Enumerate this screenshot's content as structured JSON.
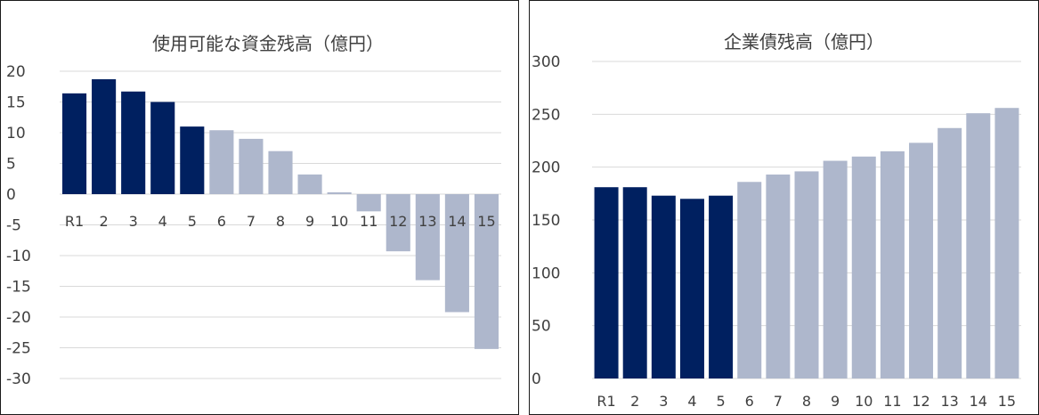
{
  "chart_data": [
    {
      "type": "bar",
      "title": "使用可能な資金残高（億円）",
      "xlabel": "",
      "ylabel": "",
      "categories": [
        "R1",
        "2",
        "3",
        "4",
        "5",
        "6",
        "7",
        "8",
        "9",
        "10",
        "11",
        "12",
        "13",
        "14",
        "15"
      ],
      "values": [
        16.4,
        18.7,
        16.7,
        15.0,
        11.0,
        10.4,
        9.0,
        7.0,
        3.2,
        0.3,
        -2.8,
        -9.3,
        -14.0,
        -19.2,
        -25.2
      ],
      "ylim": [
        -30,
        20
      ],
      "yticks": [
        "20",
        "15",
        "10",
        "5",
        "0",
        "-5",
        "-10",
        "-15",
        "-20",
        "-25",
        "-30"
      ],
      "grid": true,
      "legend": "none",
      "colors": {
        "actual": "#002060",
        "forecast": "#aeb7cc"
      },
      "actual_count": 5
    },
    {
      "type": "bar",
      "title": "企業債残高（億円）",
      "xlabel": "",
      "ylabel": "",
      "categories": [
        "R1",
        "2",
        "3",
        "4",
        "5",
        "6",
        "7",
        "8",
        "9",
        "10",
        "11",
        "12",
        "13",
        "14",
        "15"
      ],
      "values": [
        181,
        181,
        173,
        170,
        173,
        186,
        193,
        196,
        206,
        210,
        215,
        223,
        237,
        251,
        256
      ],
      "ylim": [
        0,
        300
      ],
      "yticks": [
        "300",
        "250",
        "200",
        "150",
        "100",
        "50",
        "0"
      ],
      "grid": true,
      "legend": "none",
      "colors": {
        "actual": "#002060",
        "forecast": "#aeb7cc"
      },
      "actual_count": 5
    }
  ]
}
